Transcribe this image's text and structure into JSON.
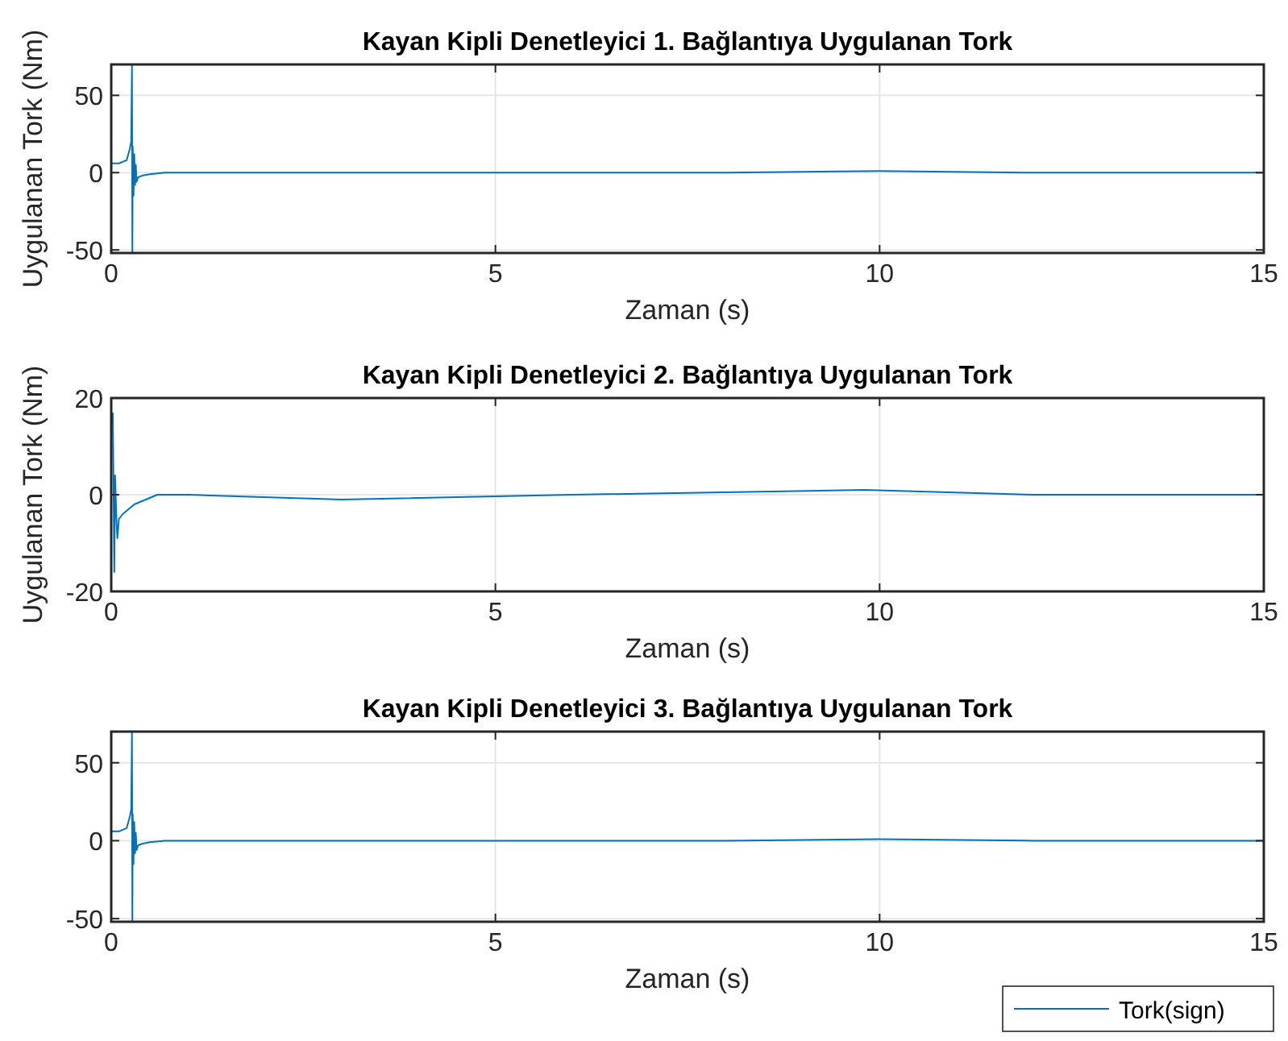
{
  "chart_data": [
    {
      "type": "line",
      "title": "Kayan Kipli Denetleyici 1. Bağlantıya Uygulanan Tork",
      "xlabel": "Zaman (s)",
      "ylabel": "Uygulanan Tork (Nm)",
      "xlim": [
        0,
        15
      ],
      "ylim": [
        -52,
        70
      ],
      "xticks": [
        0,
        5,
        10,
        15
      ],
      "yticks": [
        -50,
        0,
        50
      ],
      "grid": true,
      "series": [
        {
          "color": "#0072bd",
          "x": [
            0,
            0.1,
            0.2,
            0.24,
            0.26,
            0.27,
            0.275,
            0.28,
            0.29,
            0.3,
            0.31,
            0.32,
            0.33,
            0.35,
            0.4,
            0.5,
            0.7,
            1,
            1.3,
            3,
            6,
            8,
            10,
            12,
            15
          ],
          "values": [
            6,
            6,
            8,
            15,
            20,
            70,
            -52,
            17,
            -15,
            12,
            -8,
            5,
            -6,
            -3,
            -2,
            -1,
            0,
            0,
            0,
            0,
            0,
            0,
            1,
            0,
            0
          ]
        }
      ]
    },
    {
      "type": "line",
      "title": "Kayan Kipli Denetleyici 2. Bağlantıya Uygulanan Tork",
      "xlabel": "Zaman (s)",
      "ylabel": "Uygulanan Tork (Nm)",
      "xlim": [
        0,
        15
      ],
      "ylim": [
        -20,
        20
      ],
      "xticks": [
        0,
        5,
        10,
        15
      ],
      "yticks": [
        -20,
        0,
        20
      ],
      "grid": true,
      "series": [
        {
          "color": "#0072bd",
          "x": [
            0.02,
            0.025,
            0.04,
            0.05,
            0.07,
            0.08,
            0.1,
            0.15,
            0.3,
            0.6,
            1,
            3,
            6,
            9.8,
            12,
            15
          ],
          "values": [
            17,
            10,
            -16,
            4,
            -6,
            -9,
            -5,
            -4,
            -2,
            0,
            0,
            -1,
            0,
            1,
            0,
            0
          ]
        }
      ]
    },
    {
      "type": "line",
      "title": "Kayan Kipli Denetleyici 3. Bağlantıya Uygulanan Tork",
      "xlabel": "Zaman (s)",
      "xlim": [
        0,
        15
      ],
      "ylim": [
        -52,
        70
      ],
      "xticks": [
        0,
        5,
        10,
        15
      ],
      "yticks": [
        -50,
        0,
        50
      ],
      "grid": true,
      "legend": "bottom right",
      "series": [
        {
          "name": "Tork(sign)",
          "color": "#0072bd",
          "x": [
            0,
            0.1,
            0.2,
            0.24,
            0.26,
            0.27,
            0.275,
            0.28,
            0.29,
            0.3,
            0.31,
            0.32,
            0.33,
            0.35,
            0.4,
            0.5,
            0.7,
            1,
            1.3,
            3,
            6,
            8,
            10,
            12,
            15
          ],
          "values": [
            6,
            6,
            8,
            15,
            20,
            70,
            -52,
            17,
            -15,
            12,
            -8,
            5,
            -6,
            -3,
            -2,
            -1,
            0,
            0,
            0,
            0,
            0,
            0,
            1,
            0,
            0
          ]
        }
      ]
    }
  ]
}
